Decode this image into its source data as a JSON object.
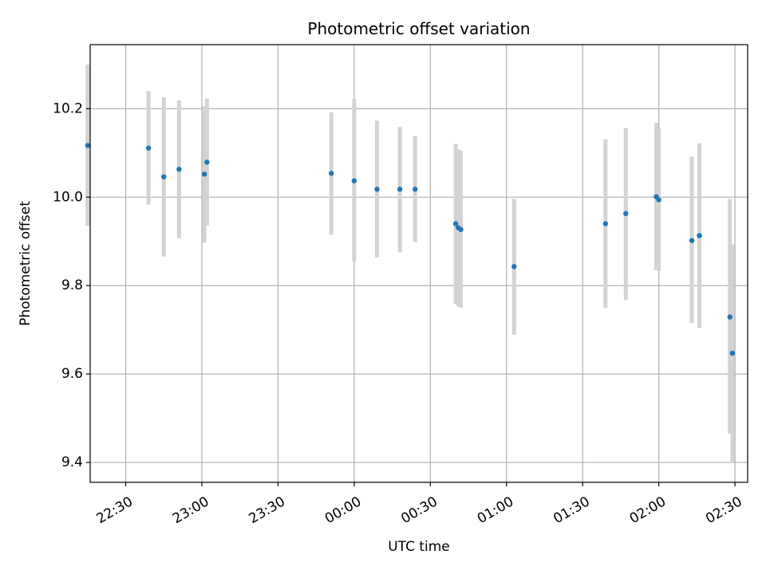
{
  "chart_data": {
    "type": "scatter",
    "title": "Photometric offset variation",
    "xlabel": "UTC time",
    "ylabel": "Photometric offset",
    "x_axis_type": "time",
    "x_range": [
      "2000-01-01T22:16:00",
      "2000-01-02T02:35:00"
    ],
    "ylim": [
      9.355,
      10.345
    ],
    "x_ticks": [
      {
        "t": "2000-01-01T22:30:00",
        "label": "22:30"
      },
      {
        "t": "2000-01-01T23:00:00",
        "label": "23:00"
      },
      {
        "t": "2000-01-01T23:30:00",
        "label": "23:30"
      },
      {
        "t": "2000-01-02T00:00:00",
        "label": "00:00"
      },
      {
        "t": "2000-01-02T00:30:00",
        "label": "00:30"
      },
      {
        "t": "2000-01-02T01:00:00",
        "label": "01:00"
      },
      {
        "t": "2000-01-02T01:30:00",
        "label": "01:30"
      },
      {
        "t": "2000-01-02T02:00:00",
        "label": "02:00"
      },
      {
        "t": "2000-01-02T02:30:00",
        "label": "02:30"
      }
    ],
    "y_ticks": [
      {
        "v": 9.4,
        "label": "9.4"
      },
      {
        "v": 9.6,
        "label": "9.6"
      },
      {
        "v": 9.8,
        "label": "9.8"
      },
      {
        "v": 10.0,
        "label": "10.0"
      },
      {
        "v": 10.2,
        "label": "10.2"
      }
    ],
    "grid": true,
    "colors": {
      "point": "#1f77b4",
      "errorbar": "#d3d3d3",
      "grid": "#b0b0b0"
    },
    "series": [
      {
        "points": [
          {
            "x": "2000-01-01T22:15:00",
            "y": 10.117,
            "ylo": 9.935,
            "yhi": 10.3
          },
          {
            "x": "2000-01-01T22:39:00",
            "y": 10.111,
            "ylo": 9.983,
            "yhi": 10.24
          },
          {
            "x": "2000-01-01T22:45:00",
            "y": 10.046,
            "ylo": 9.866,
            "yhi": 10.226
          },
          {
            "x": "2000-01-01T22:51:00",
            "y": 10.063,
            "ylo": 9.907,
            "yhi": 10.219
          },
          {
            "x": "2000-01-01T23:01:00",
            "y": 10.052,
            "ylo": 9.897,
            "yhi": 10.206
          },
          {
            "x": "2000-01-01T23:02:00",
            "y": 10.079,
            "ylo": 9.936,
            "yhi": 10.223
          },
          {
            "x": "2000-01-01T23:51:00",
            "y": 10.054,
            "ylo": 9.915,
            "yhi": 10.192
          },
          {
            "x": "2000-01-02T00:00:00",
            "y": 10.037,
            "ylo": 9.855,
            "yhi": 10.222
          },
          {
            "x": "2000-01-02T00:09:00",
            "y": 10.018,
            "ylo": 9.864,
            "yhi": 10.173
          },
          {
            "x": "2000-01-02T00:18:00",
            "y": 10.018,
            "ylo": 9.875,
            "yhi": 10.159
          },
          {
            "x": "2000-01-02T00:24:00",
            "y": 10.018,
            "ylo": 9.898,
            "yhi": 10.138
          },
          {
            "x": "2000-01-02T00:40:00",
            "y": 9.94,
            "ylo": 9.758,
            "yhi": 10.121
          },
          {
            "x": "2000-01-02T00:41:00",
            "y": 9.931,
            "ylo": 9.753,
            "yhi": 10.108
          },
          {
            "x": "2000-01-02T00:42:00",
            "y": 9.927,
            "ylo": 9.75,
            "yhi": 10.105
          },
          {
            "x": "2000-01-02T01:03:00",
            "y": 9.843,
            "ylo": 9.689,
            "yhi": 9.996
          },
          {
            "x": "2000-01-02T01:39:00",
            "y": 9.94,
            "ylo": 9.75,
            "yhi": 10.131
          },
          {
            "x": "2000-01-02T01:47:00",
            "y": 9.963,
            "ylo": 9.768,
            "yhi": 10.156
          },
          {
            "x": "2000-01-02T01:59:00",
            "y": 10.001,
            "ylo": 9.835,
            "yhi": 10.168
          },
          {
            "x": "2000-01-02T02:00:00",
            "y": 9.994,
            "ylo": 9.833,
            "yhi": 10.155
          },
          {
            "x": "2000-01-02T02:13:00",
            "y": 9.902,
            "ylo": 9.715,
            "yhi": 10.092
          },
          {
            "x": "2000-01-02T02:16:00",
            "y": 9.913,
            "ylo": 9.704,
            "yhi": 10.122
          },
          {
            "x": "2000-01-02T02:28:00",
            "y": 9.729,
            "ylo": 9.465,
            "yhi": 9.996
          },
          {
            "x": "2000-01-02T02:29:00",
            "y": 9.647,
            "ylo": 9.402,
            "yhi": 9.893
          }
        ]
      }
    ]
  }
}
